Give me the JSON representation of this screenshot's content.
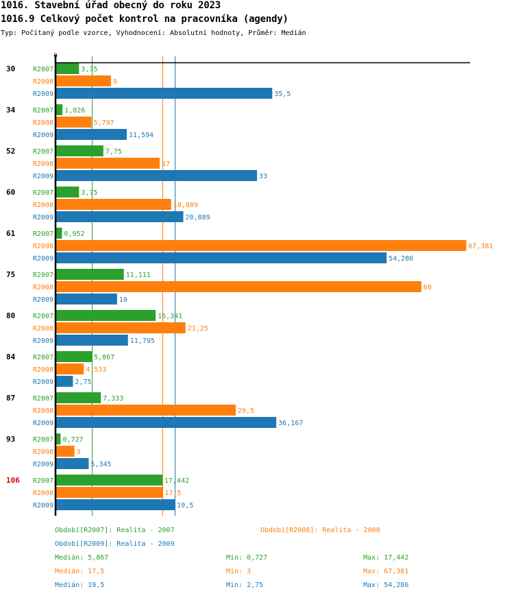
{
  "header": {
    "title": "1016. Stavební úřad obecný do roku 2023",
    "subtitle": "1016.9 Celkový počet kontrol na pracovníka (agendy)",
    "meta": "Typ: Počítaný podle vzorce, Vyhodnocení: Absolutní hodnoty, Průměr: Medián"
  },
  "colors": {
    "R2007": "#2ca02c",
    "R2008": "#ff7f0e",
    "R2009": "#1f77b4",
    "highlight": "#e60000",
    "axis": "#000000"
  },
  "chart_data": {
    "type": "bar",
    "orientation": "horizontal",
    "axis_zero_label": "0",
    "xlim": [
      0,
      67.381
    ],
    "categories": [
      "30",
      "34",
      "52",
      "60",
      "61",
      "75",
      "80",
      "84",
      "87",
      "93",
      "106"
    ],
    "highlighted_category": "106",
    "series": [
      {
        "name": "R2007",
        "values": [
          3.75,
          1.026,
          7.75,
          3.75,
          0.952,
          11.111,
          16.341,
          5.867,
          7.333,
          0.727,
          17.442
        ],
        "labels": [
          "3,75",
          "1,026",
          "7,75",
          "3,75",
          "0,952",
          "11,111",
          "16,341",
          "5,867",
          "7,333",
          "0,727",
          "17,442"
        ]
      },
      {
        "name": "R2008",
        "values": [
          9,
          5.797,
          17,
          18.889,
          67.381,
          60,
          21.25,
          4.533,
          29.5,
          3,
          17.5
        ],
        "labels": [
          "9",
          "5,797",
          "17",
          "18,889",
          "67,381",
          "60",
          "21,25",
          "4,533",
          "29,5",
          "3",
          "17,5"
        ]
      },
      {
        "name": "R2009",
        "values": [
          35.5,
          11.594,
          33,
          20.889,
          54.286,
          10,
          11.795,
          2.75,
          36.167,
          5.345,
          19.5
        ],
        "labels": [
          "35,5",
          "11,594",
          "33",
          "20,889",
          "54,286",
          "10",
          "11,795",
          "2,75",
          "36,167",
          "5,345",
          "19,5"
        ]
      }
    ],
    "median_lines": [
      {
        "series": "R2007",
        "value": 5.867
      },
      {
        "series": "R2008",
        "value": 17.5
      },
      {
        "series": "R2009",
        "value": 19.5
      }
    ]
  },
  "legend": {
    "items": [
      {
        "series": "R2007",
        "text": "Období[R2007]: Realita - 2007"
      },
      {
        "series": "R2008",
        "text": "Období[R2008]: Realita - 2008"
      },
      {
        "series": "R2009",
        "text": "Období[R2009]: Realita - 2009"
      }
    ]
  },
  "stats": [
    {
      "series": "R2007",
      "median": "Medián: 5,867",
      "min": "Min: 0,727",
      "max": "Max: 17,442"
    },
    {
      "series": "R2008",
      "median": "Medián: 17,5",
      "min": "Min: 3",
      "max": "Max: 67,381"
    },
    {
      "series": "R2009",
      "median": "Medián: 19,5",
      "min": "Min: 2,75",
      "max": "Max: 54,286"
    }
  ]
}
